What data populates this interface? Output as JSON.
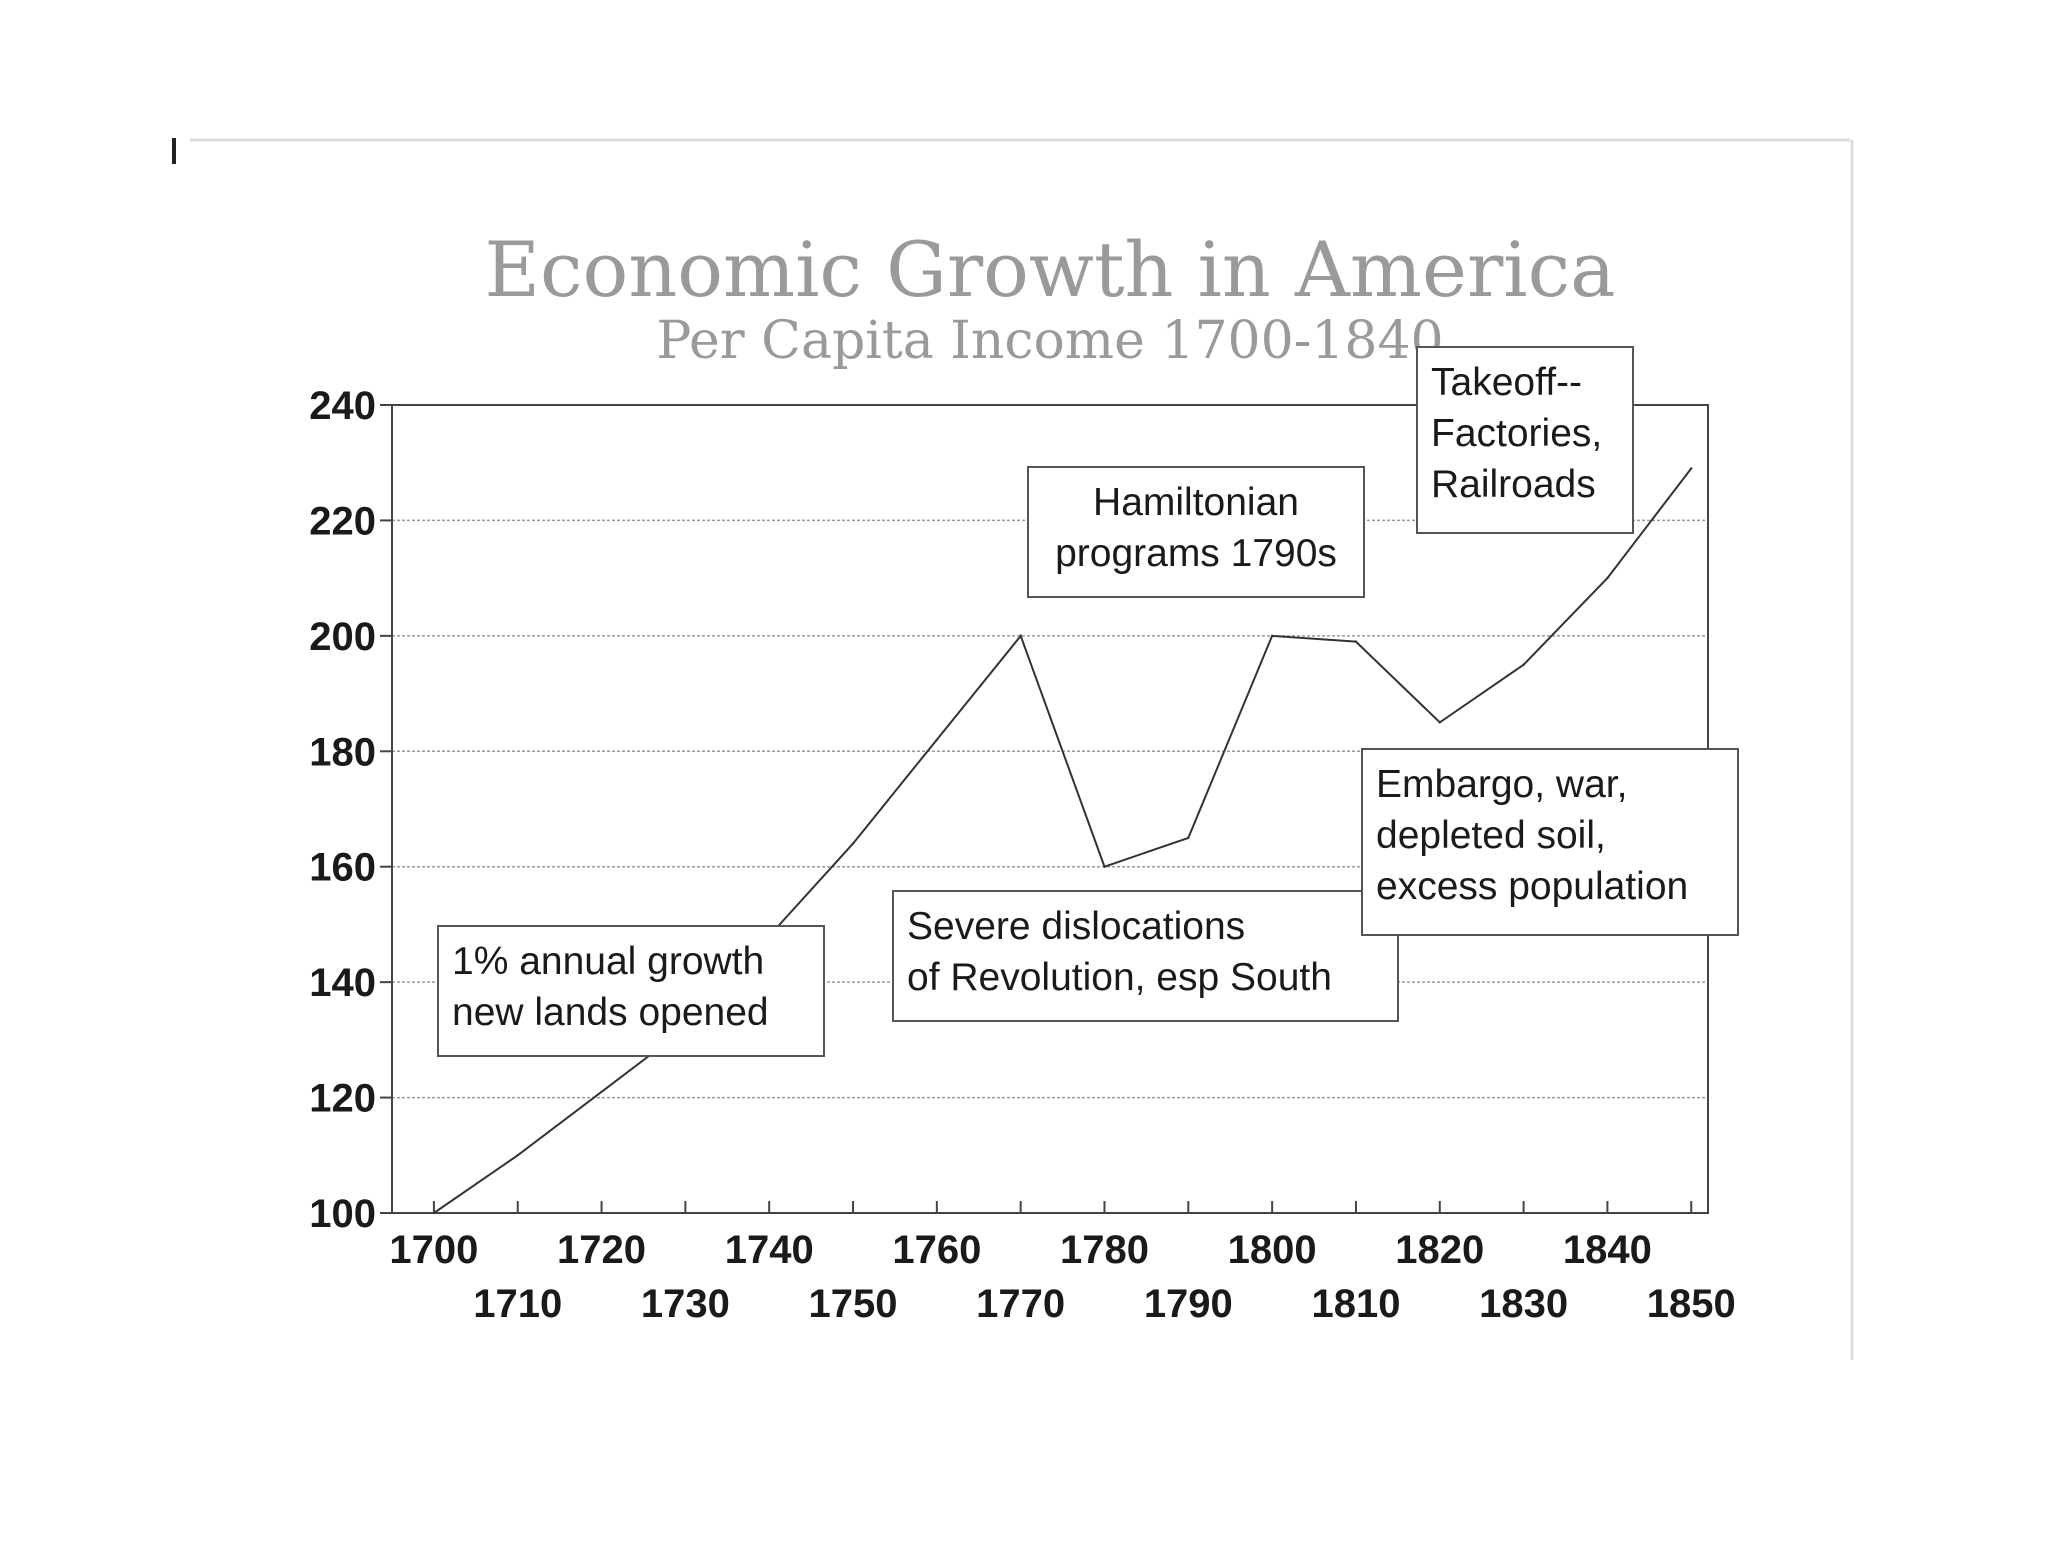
{
  "chart_data": {
    "type": "line",
    "title": "Economic Growth in America",
    "subtitle": "Per Capita Income 1700-1840",
    "xlabel": "",
    "ylabel": "",
    "xlim": [
      1695,
      1852
    ],
    "ylim": [
      100,
      240
    ],
    "y_ticks": [
      100,
      120,
      140,
      160,
      180,
      200,
      220,
      240
    ],
    "x_ticks": [
      1700,
      1710,
      1720,
      1730,
      1740,
      1750,
      1760,
      1770,
      1780,
      1790,
      1800,
      1810,
      1820,
      1830,
      1840,
      1850
    ],
    "grid": "horizontal",
    "series": [
      {
        "x": [
          1700,
          1710,
          1720,
          1730,
          1740,
          1750,
          1760,
          1770,
          1780,
          1790,
          1800,
          1810,
          1820,
          1830,
          1840,
          1850
        ],
        "values": [
          100,
          110,
          121,
          132,
          148,
          164,
          182,
          200,
          160,
          165,
          200,
          199,
          185,
          195,
          210,
          229
        ]
      }
    ],
    "annotations": [
      {
        "lines": [
          "1% annual growth",
          "new lands opened"
        ]
      },
      {
        "lines": [
          "Severe dislocations",
          "of Revolution, esp South"
        ]
      },
      {
        "lines": [
          "Hamiltonian",
          "programs 1790s"
        ]
      },
      {
        "lines": [
          "Embargo, war,",
          "depleted soil,",
          "excess population"
        ]
      },
      {
        "lines": [
          "Takeoff--",
          "Factories,",
          "Railroads"
        ]
      }
    ]
  }
}
